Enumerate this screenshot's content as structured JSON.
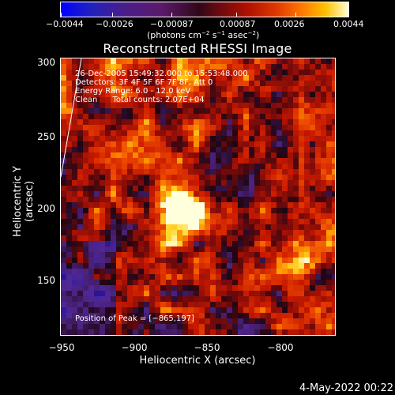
{
  "colorbar": {
    "tick_labels": [
      "−0.0044",
      "−0.0026",
      "−0.00087",
      "0.00087",
      "0.0026",
      "0.0044"
    ],
    "units_prefix": "(photons cm",
    "units_exp1": "−2",
    "units_mid1": " s",
    "units_exp2": "−1",
    "units_mid2": " asec",
    "units_exp3": "−2",
    "units_suffix": ")"
  },
  "plot": {
    "title": "Reconstructed RHESSI Image",
    "info_lines": [
      "26-Dec-2005 15:49:32.000 to 15:53:48.000",
      "Detectors: 3F 4F 5F 6F 7F 8F, Att 0",
      "Energy Range: 6.0 - 12.0 keV",
      "Clean      Total counts: 2.07E+04"
    ],
    "peak_text": "Position of Peak = [−865,197]",
    "xlabel": "Heliocentric X (arcsec)",
    "ylabel": "Heliocentric Y (arcsec)",
    "xticks": [
      "−950",
      "−900",
      "−850",
      "−800"
    ],
    "yticks": [
      "300",
      "250",
      "200",
      "150"
    ]
  },
  "footer": {
    "date": "4-May-2022 00:22"
  },
  "chart_data": {
    "type": "heatmap",
    "title": "Reconstructed RHESSI Image",
    "xlabel": "Heliocentric X (arcsec)",
    "ylabel": "Heliocentric Y (arcsec)",
    "xlim": [
      -950,
      -832
    ],
    "ylim": [
      108,
      303
    ],
    "colorbar_range": [
      -0.0044,
      0.0044
    ],
    "peak": {
      "x": -865,
      "y": 197
    },
    "colors": {
      "low": "#2020c0",
      "zero": "#300818",
      "high": "#ffffd0"
    }
  }
}
